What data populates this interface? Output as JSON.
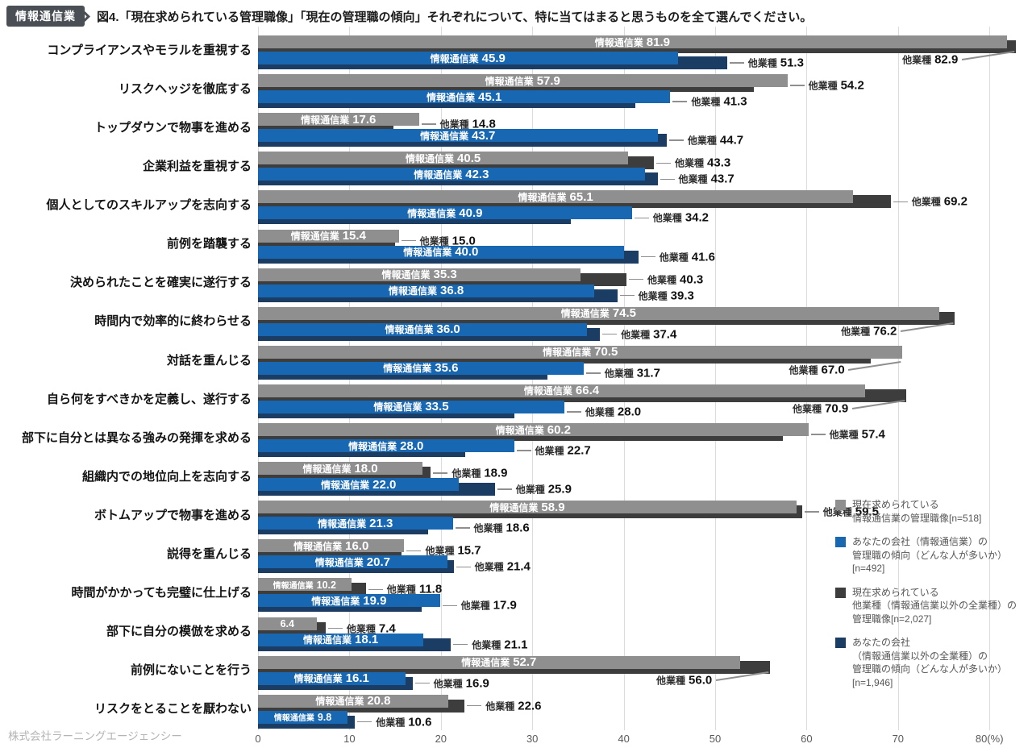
{
  "header": {
    "badge": "情報通信業"
  },
  "footer": {
    "company": "株式会社ラーニングエージェンシー"
  },
  "colors": {
    "gray": "#8f8f8f",
    "blue": "#1767b3",
    "dark_gray": "#3d3d3d",
    "navy": "#1c3d63",
    "badge_bg": "#4a4f55",
    "gridline": "#dcdcdc",
    "leader": "#8f8f8f"
  },
  "chart_data": {
    "type": "bar",
    "orientation": "horizontal",
    "title": "図4.「現在求められている管理職像」「現在の管理職の傾向」それぞれについて、特に当てはまると思うものを全て選んでください。",
    "xlim": [
      0,
      80
    ],
    "x_ticks": [
      "0",
      "10",
      "20",
      "30",
      "40",
      "50",
      "60",
      "70",
      "80(%)"
    ],
    "grid": true,
    "legend_position": "right-bottom",
    "categories": [
      "コンプライアンスやモラルを重視する",
      "リスクヘッジを徹底する",
      "トップダウンで物事を進める",
      "企業利益を重視する",
      "個人としてのスキルアップを志向する",
      "前例を踏襲する",
      "決められたことを確実に遂行する",
      "時間内で効率的に終わらせる",
      "対話を重んじる",
      "自ら何をすべきかを定義し、遂行する",
      "部下に自分とは異なる強みの発揮を求める",
      "組織内での地位向上を志向する",
      "ボトムアップで物事を進める",
      "説得を重んじる",
      "時間がかかっても完璧に仕上げる",
      "部下に自分の模倣を求める",
      "前例にないことを行う",
      "リスクをとることを厭わない"
    ],
    "series": [
      {
        "id": "sought-industry",
        "name": "現在求められている情報通信業の管理職像[n=518]",
        "legend_lines": [
          "現在求められている",
          "情報通信業の管理職像[n=518]"
        ],
        "color_key": "gray",
        "label_prefix": "情報通信業",
        "values": [
          81.9,
          57.9,
          17.6,
          40.5,
          65.1,
          15.4,
          35.3,
          74.5,
          70.5,
          66.4,
          60.2,
          18.0,
          58.9,
          16.0,
          10.2,
          6.4,
          52.7,
          20.8
        ]
      },
      {
        "id": "tendency-industry",
        "name": "あなたの会社（情報通信業）の管理職の傾向（どんな人が多いか）[n=492]",
        "legend_lines": [
          "あなたの会社（情報通信業）の",
          "管理職の傾向（どんな人が多いか）",
          "[n=492]"
        ],
        "color_key": "blue",
        "label_prefix": "情報通信業",
        "values": [
          45.9,
          45.1,
          43.7,
          42.3,
          40.9,
          40.0,
          36.8,
          36.0,
          35.6,
          33.5,
          28.0,
          22.0,
          21.3,
          20.7,
          19.9,
          18.1,
          16.1,
          9.8
        ]
      },
      {
        "id": "sought-other",
        "name": "現在求められている他業種（情報通信業以外の全業種）の管理職像[n=2,027]",
        "legend_lines": [
          "現在求められている",
          "他業種（情報通信業以外の全業種）の",
          "管理職像[n=2,027]"
        ],
        "color_key": "dark_gray",
        "label_prefix": "他業種",
        "values": [
          82.9,
          54.2,
          14.8,
          43.3,
          69.2,
          15.0,
          40.3,
          76.2,
          67.0,
          70.9,
          57.4,
          18.9,
          59.5,
          15.7,
          11.8,
          7.4,
          56.0,
          22.6
        ]
      },
      {
        "id": "tendency-other",
        "name": "あなたの会社（情報通信業以外の全業種）の管理職の傾向（どんな人が多いか）[n=1,946]",
        "legend_lines": [
          "あなたの会社",
          "（情報通信業以外の全業種）の",
          "管理職の傾向（どんな人が多いか）",
          "[n=1,946]"
        ],
        "color_key": "navy",
        "label_prefix": "他業種",
        "values": [
          51.3,
          41.3,
          44.7,
          43.7,
          34.2,
          41.6,
          39.3,
          37.4,
          31.7,
          28.0,
          22.7,
          25.9,
          18.6,
          21.4,
          17.9,
          21.1,
          16.9,
          10.6
        ]
      }
    ],
    "layout_hints": {
      "sought_other_label_below_left": [
        0,
        7,
        8,
        9,
        16
      ]
    }
  }
}
